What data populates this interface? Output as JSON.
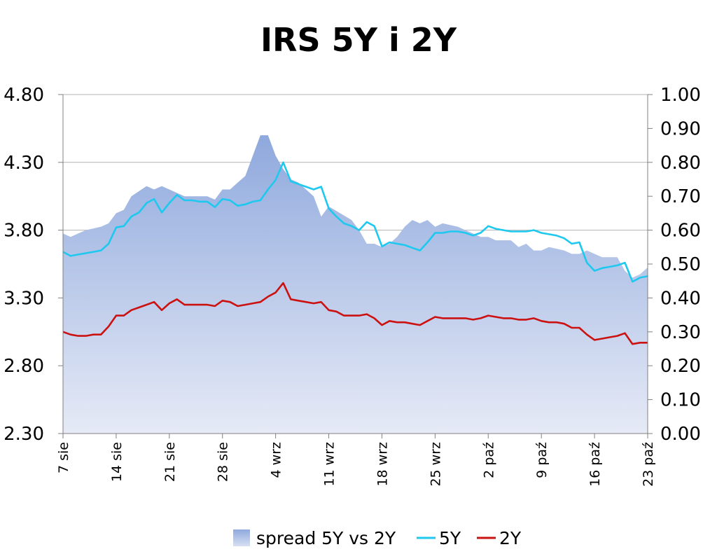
{
  "chart_data": {
    "type": "line",
    "title": "IRS 5Y i 2Y",
    "y_left_range": [
      2.3,
      4.8
    ],
    "y_right_range": [
      0.0,
      1.0
    ],
    "y_left_ticks": [
      "2.30",
      "2.80",
      "3.30",
      "3.80",
      "4.30",
      "4.80"
    ],
    "y_right_ticks": [
      "0.00",
      "0.10",
      "0.20",
      "0.30",
      "0.40",
      "0.50",
      "0.60",
      "0.70",
      "0.80",
      "0.90",
      "1.00"
    ],
    "x_tick_labels": [
      "7 sie",
      "14 sie",
      "21 sie",
      "28 sie",
      "4 wrz",
      "11 wrz",
      "18 wrz",
      "25 wrz",
      "2 paź",
      "9 paź",
      "16 paź",
      "23 paź"
    ],
    "grid": "horizontal",
    "legend_position": "bottom",
    "colors": {
      "spread": "#9fb5e2",
      "5Y": "#1ec8ee",
      "2Y": "#cc1111"
    },
    "series": [
      {
        "name": "spread 5Y vs 2Y",
        "type": "area",
        "axis": "right",
        "x": [
          0,
          1,
          2,
          3,
          5,
          6,
          7,
          8,
          9,
          11,
          12,
          13,
          14,
          15,
          16,
          19,
          20,
          21,
          22,
          23,
          24,
          25,
          26,
          27,
          28,
          29,
          30,
          31,
          33,
          34,
          35,
          38,
          39,
          40,
          41,
          42,
          43,
          44,
          45,
          46,
          47,
          48,
          49,
          50,
          52,
          53,
          54,
          55,
          56,
          57,
          59,
          60,
          61,
          62,
          63,
          64,
          66,
          67,
          68,
          69,
          70,
          71,
          73,
          74,
          75,
          76,
          77
        ],
        "values": [
          0.59,
          0.58,
          0.59,
          0.6,
          0.61,
          0.62,
          0.65,
          0.66,
          0.7,
          0.73,
          0.72,
          0.73,
          0.72,
          0.71,
          0.7,
          0.7,
          0.69,
          0.72,
          0.72,
          0.74,
          0.76,
          0.82,
          0.88,
          0.88,
          0.82,
          0.78,
          0.75,
          0.74,
          0.7,
          0.64,
          0.67,
          0.63,
          0.6,
          0.56,
          0.56,
          0.55,
          0.56,
          0.58,
          0.61,
          0.63,
          0.62,
          0.63,
          0.61,
          0.62,
          0.61,
          0.6,
          0.59,
          0.58,
          0.58,
          0.57,
          0.57,
          0.55,
          0.56,
          0.54,
          0.54,
          0.55,
          0.54,
          0.53,
          0.53,
          0.54,
          0.53,
          0.52,
          0.52,
          0.48,
          0.46,
          0.47,
          0.49
        ]
      },
      {
        "name": "5Y",
        "type": "line",
        "axis": "left",
        "x": [
          0,
          1,
          2,
          3,
          4,
          5,
          6,
          7,
          8,
          9,
          10,
          11,
          12,
          13,
          14,
          15,
          16,
          17,
          18,
          19,
          20,
          21,
          22,
          23,
          24,
          25,
          26,
          27,
          28,
          29,
          30,
          31,
          32,
          33,
          34,
          35,
          36,
          37,
          38,
          39,
          40,
          41,
          42,
          43,
          44,
          45,
          46,
          47,
          48,
          49,
          50,
          51,
          52,
          53,
          54,
          55,
          56,
          57,
          58,
          59,
          60,
          61,
          62,
          63,
          64,
          65,
          66,
          67,
          68,
          69,
          70,
          71,
          72,
          73,
          74,
          75,
          76,
          77
        ],
        "values": [
          3.64,
          3.61,
          3.62,
          3.63,
          3.64,
          3.65,
          3.7,
          3.82,
          3.83,
          3.9,
          3.93,
          4.0,
          4.03,
          3.93,
          4.0,
          4.06,
          4.02,
          4.02,
          4.01,
          4.01,
          3.97,
          4.03,
          4.02,
          3.98,
          3.99,
          4.01,
          4.02,
          4.1,
          4.17,
          4.3,
          4.16,
          4.14,
          4.12,
          4.1,
          4.12,
          3.96,
          3.9,
          3.85,
          3.83,
          3.8,
          3.86,
          3.83,
          3.68,
          3.71,
          3.7,
          3.69,
          3.67,
          3.65,
          3.71,
          3.78,
          3.78,
          3.79,
          3.79,
          3.78,
          3.76,
          3.78,
          3.83,
          3.81,
          3.8,
          3.79,
          3.79,
          3.79,
          3.8,
          3.78,
          3.77,
          3.76,
          3.74,
          3.7,
          3.71,
          3.56,
          3.5,
          3.52,
          3.53,
          3.54,
          3.56,
          3.42,
          3.45,
          3.46
        ]
      },
      {
        "name": "2Y",
        "type": "line",
        "axis": "left",
        "x": [
          0,
          1,
          2,
          3,
          4,
          5,
          6,
          7,
          8,
          9,
          10,
          11,
          12,
          13,
          14,
          15,
          16,
          17,
          18,
          19,
          20,
          21,
          22,
          23,
          24,
          25,
          26,
          27,
          28,
          29,
          30,
          31,
          32,
          33,
          34,
          35,
          36,
          37,
          38,
          39,
          40,
          41,
          42,
          43,
          44,
          45,
          46,
          47,
          48,
          49,
          50,
          51,
          52,
          53,
          54,
          55,
          56,
          57,
          58,
          59,
          60,
          61,
          62,
          63,
          64,
          65,
          66,
          67,
          68,
          69,
          70,
          71,
          72,
          73,
          74,
          75,
          76,
          77
        ],
        "values": [
          3.05,
          3.03,
          3.02,
          3.02,
          3.03,
          3.03,
          3.09,
          3.17,
          3.17,
          3.21,
          3.23,
          3.25,
          3.27,
          3.21,
          3.26,
          3.29,
          3.25,
          3.25,
          3.25,
          3.25,
          3.24,
          3.28,
          3.27,
          3.24,
          3.25,
          3.26,
          3.27,
          3.31,
          3.34,
          3.41,
          3.29,
          3.28,
          3.27,
          3.26,
          3.27,
          3.21,
          3.2,
          3.17,
          3.17,
          3.17,
          3.18,
          3.15,
          3.1,
          3.13,
          3.12,
          3.12,
          3.11,
          3.1,
          3.13,
          3.16,
          3.15,
          3.15,
          3.15,
          3.15,
          3.14,
          3.15,
          3.17,
          3.16,
          3.15,
          3.15,
          3.14,
          3.14,
          3.15,
          3.13,
          3.12,
          3.12,
          3.11,
          3.08,
          3.08,
          3.03,
          2.99,
          3.0,
          3.01,
          3.02,
          3.04,
          2.96,
          2.97,
          2.97
        ]
      }
    ]
  }
}
